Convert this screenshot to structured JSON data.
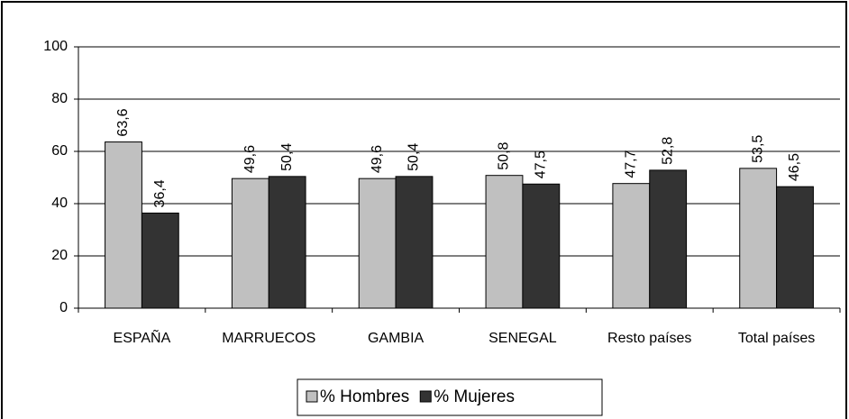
{
  "chart_data": {
    "type": "bar",
    "categories": [
      "ESPAÑA",
      "MARRUECOS",
      "GAMBIA",
      "SENEGAL",
      "Resto países",
      "Total países"
    ],
    "series": [
      {
        "name": "% Hombres",
        "color": "#c0c0c0",
        "values": [
          63.6,
          49.6,
          49.6,
          50.8,
          47.7,
          53.5
        ],
        "value_labels": [
          "63,6",
          "49,6",
          "49,6",
          "50,8",
          "47,7",
          "53,5"
        ]
      },
      {
        "name": "% Mujeres",
        "color": "#333333",
        "values": [
          36.4,
          50.4,
          50.4,
          47.5,
          52.8,
          46.5
        ],
        "value_labels": [
          "36,4",
          "50,4",
          "50,4",
          "47,5",
          "52,8",
          "46,5"
        ]
      }
    ],
    "ylim": [
      0,
      100
    ],
    "yticks": [
      0,
      20,
      40,
      60,
      80,
      100
    ],
    "grid": true,
    "legend": "bottom"
  }
}
